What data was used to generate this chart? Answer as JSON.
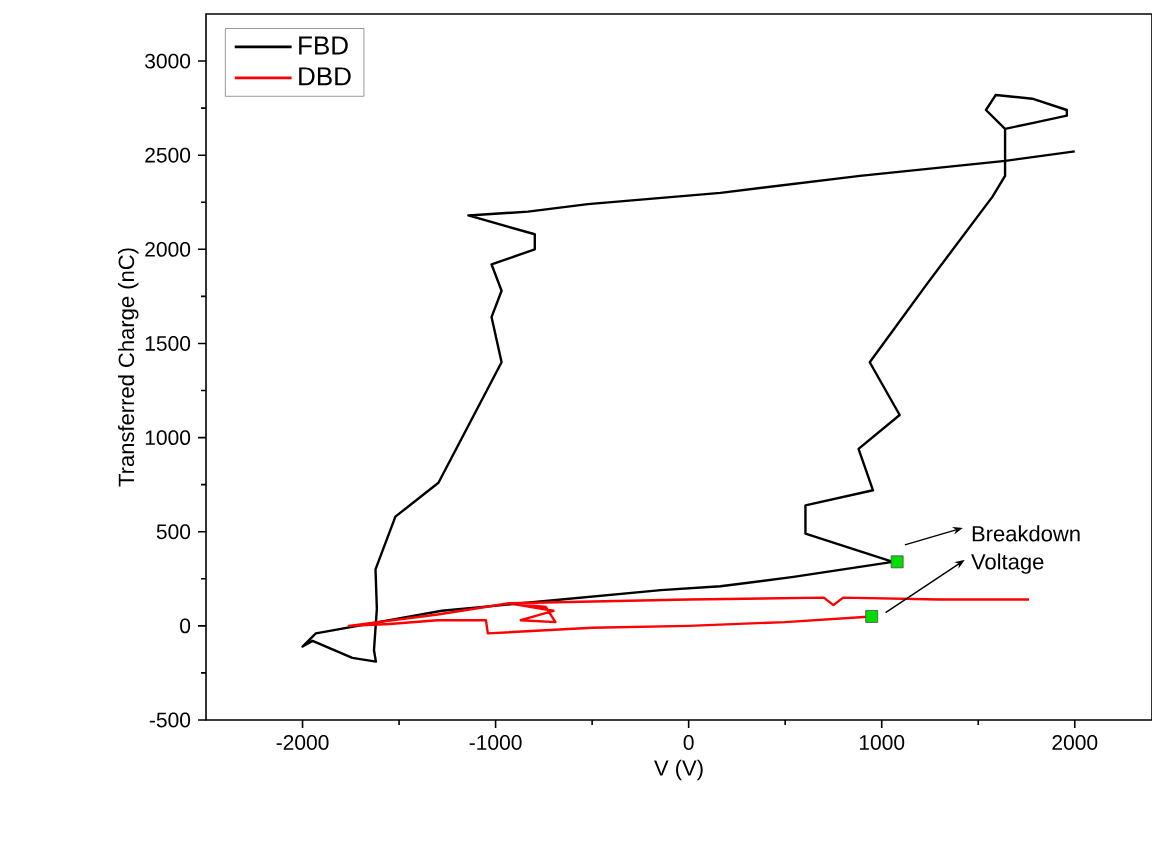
{
  "chart_data": {
    "type": "line",
    "xlabel": "V (V)",
    "ylabel": "Transferred Charge (nC)",
    "xlim": [
      -2500,
      2400
    ],
    "ylim": [
      -500,
      3250
    ],
    "xticks": [
      -2000,
      -1000,
      0,
      1000,
      2000
    ],
    "yticks": [
      -500,
      0,
      500,
      1000,
      1500,
      2000,
      2500,
      3000
    ],
    "grid": false,
    "legend": "top left",
    "line_style": "solid",
    "series": [
      {
        "name": "FBD",
        "color": "#000000",
        "x": [
          2000,
          1640,
          887,
          165,
          -522,
          -832,
          -1141,
          -797,
          -797,
          -1021,
          -969,
          -1021,
          -969,
          -1296,
          -1519,
          -1622,
          -1615,
          -1630,
          -1620,
          -1742,
          -1948,
          -2000,
          -1931,
          -1278,
          -866,
          -144,
          165,
          543,
          1058,
          605,
          605,
          955,
          880,
          1093,
          938,
          1230,
          1574,
          1639,
          1639,
          1540,
          1591,
          1780,
          1959,
          1959,
          1780,
          1639
        ],
        "values": [
          2520,
          2470,
          2390,
          2300,
          2240,
          2200,
          2180,
          2080,
          2000,
          1920,
          1780,
          1640,
          1400,
          760,
          580,
          300,
          90,
          -130,
          -190,
          -170,
          -80,
          -110,
          -40,
          80,
          120,
          190,
          210,
          260,
          340,
          490,
          640,
          720,
          940,
          1120,
          1400,
          1810,
          2280,
          2390,
          2640,
          2740,
          2820,
          2800,
          2740,
          2710,
          2670,
          2640
        ]
      },
      {
        "name": "DBD",
        "color": "#ff0000",
        "x": [
          948,
          500,
          0,
          -500,
          -1040,
          -1050,
          -1300,
          -1550,
          -1760,
          -1300,
          -930,
          -740,
          -690,
          -870,
          -700,
          -930,
          0,
          700,
          750,
          800,
          1300,
          1763
        ],
        "values": [
          50,
          20,
          0,
          -10,
          -40,
          30,
          30,
          10,
          0,
          60,
          120,
          100,
          20,
          30,
          80,
          120,
          140,
          150,
          110,
          150,
          140,
          140
        ]
      },
      {
        "type": "scatter",
        "marker": "square",
        "color": "#00dd00",
        "x": [
          1080,
          948
        ],
        "values": [
          340,
          50
        ]
      }
    ],
    "annotations": [
      "Breakdown Voltage"
    ]
  }
}
